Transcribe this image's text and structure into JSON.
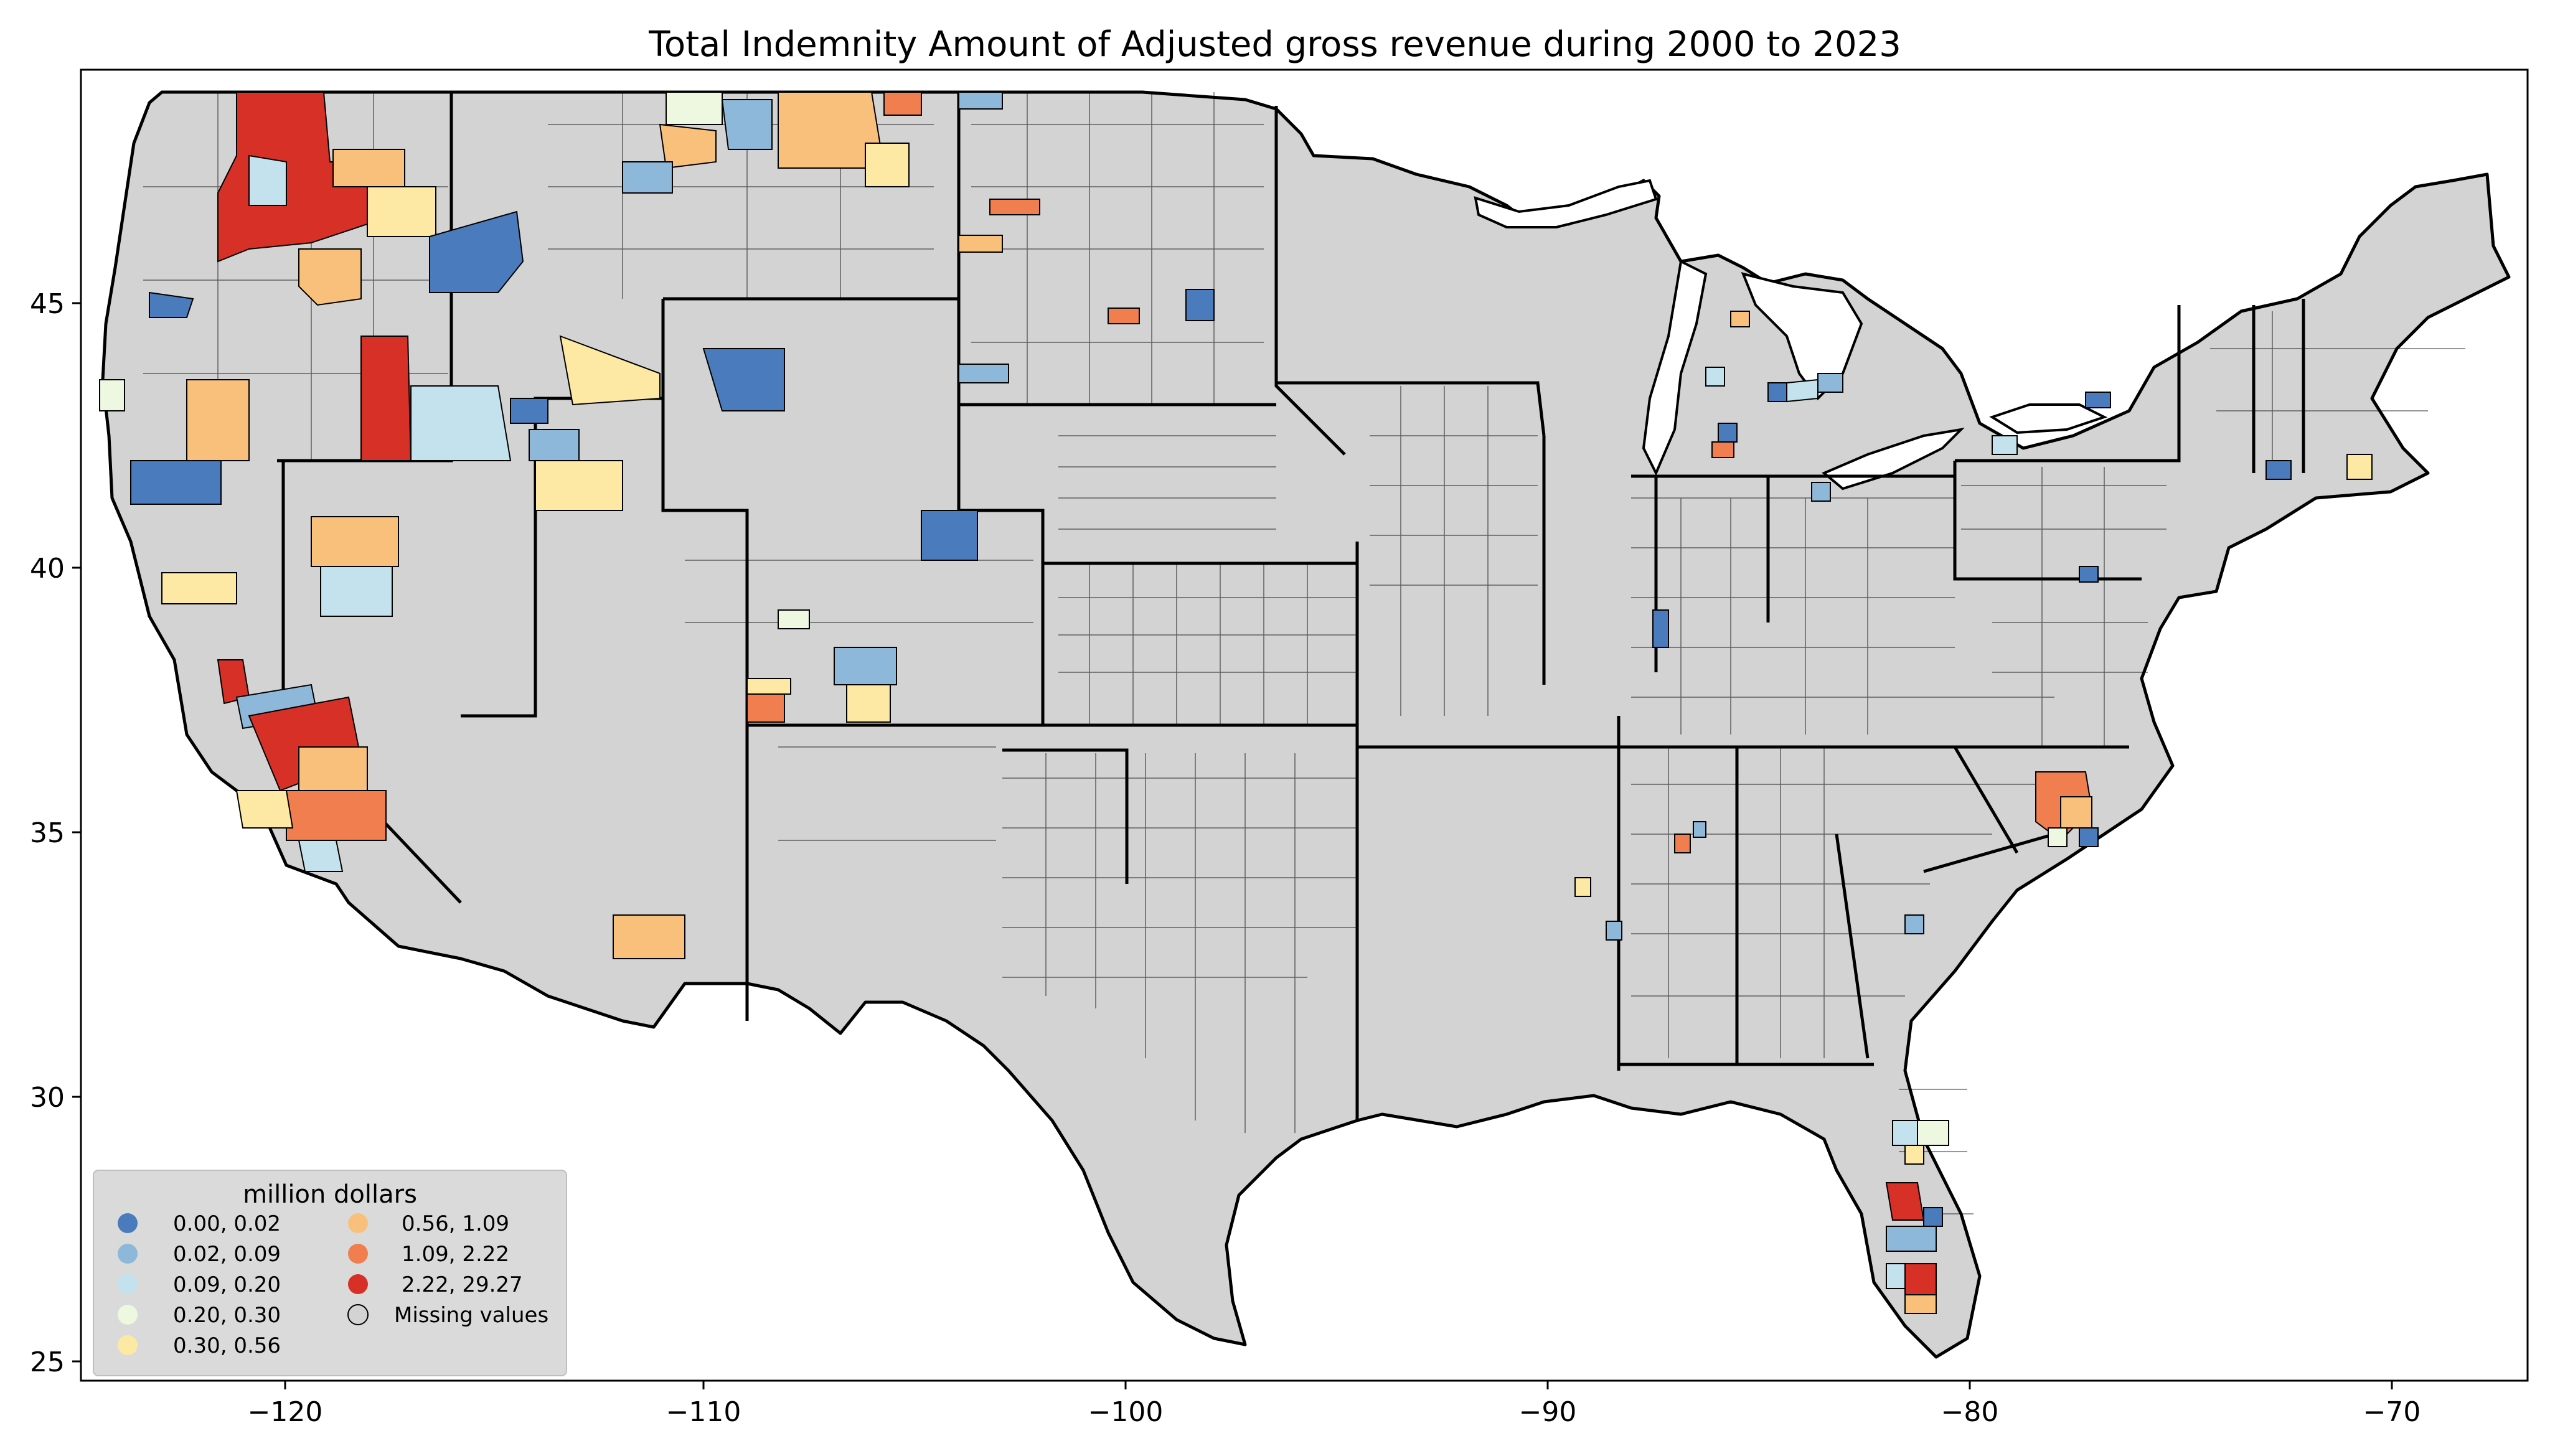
{
  "title": "Total Indemnity Amount of Adjusted gross revenue during 2000 to 2023",
  "axes": {
    "x_ticks": [
      "−120",
      "−110",
      "−100",
      "−90",
      "−80",
      "−70"
    ],
    "x_tick_values": [
      -120,
      -110,
      -100,
      -90,
      -80,
      -70
    ],
    "y_ticks": [
      "45",
      "40",
      "35",
      "30",
      "25"
    ],
    "y_tick_values": [
      45,
      40,
      35,
      30,
      25
    ],
    "xlim": [
      -124.8,
      -66.7
    ],
    "ylim": [
      24.4,
      49.5
    ]
  },
  "legend": {
    "title": "million dollars",
    "entries": [
      {
        "label": "0.00,  0.02",
        "color": "#4a7bbd"
      },
      {
        "label": "0.02,  0.09",
        "color": "#8db8da"
      },
      {
        "label": "0.09,  0.20",
        "color": "#c4e2ee"
      },
      {
        "label": "0.20,  0.30",
        "color": "#eef7e0"
      },
      {
        "label": "0.30,  0.56",
        "color": "#fde9a3"
      },
      {
        "label": "0.56,  1.09",
        "color": "#f9c07b"
      },
      {
        "label": "1.09,  2.22",
        "color": "#f07e4e"
      },
      {
        "label": "2.22, 29.27",
        "color": "#d73027"
      },
      {
        "label": "Missing values",
        "color": "#d3d3d3"
      }
    ]
  },
  "colors": {
    "missing": "#d3d3d3",
    "border": "#000000",
    "legend_bg": "#d9d9d9"
  },
  "chart_data": {
    "type": "choropleth",
    "title": "Total Indemnity Amount of Adjusted gross revenue during 2000 to 2023",
    "xlim": [
      -124.8,
      -66.7
    ],
    "ylim": [
      24.4,
      49.5
    ],
    "legend_title": "million dollars",
    "bins": [
      "0.00,  0.02",
      "0.02,  0.09",
      "0.09,  0.20",
      "0.20,  0.30",
      "0.30,  0.56",
      "0.56,  1.09",
      "1.09,  2.22",
      "2.22, 29.27"
    ],
    "legend_placement": "lower-left"
  }
}
